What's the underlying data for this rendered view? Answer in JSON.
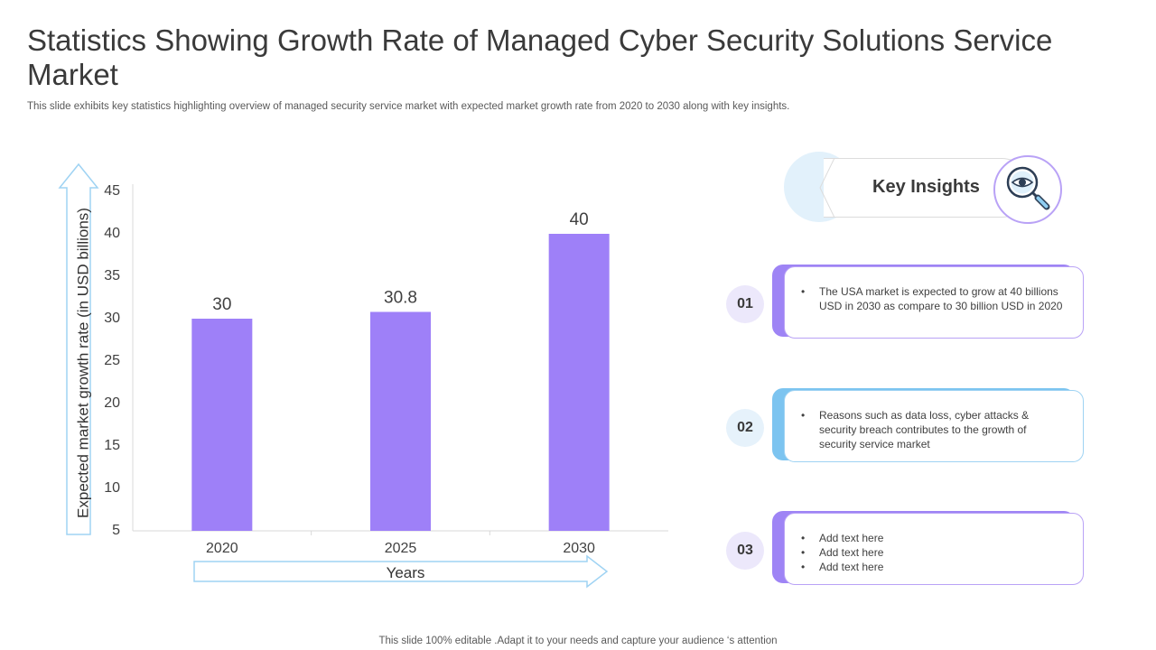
{
  "header": {
    "title": "Statistics Showing Growth Rate of Managed Cyber Security Solutions Service Market",
    "subtitle": "This slide exhibits key statistics highlighting overview of managed security service market with expected market growth rate from 2020 to 2030 along with key insights."
  },
  "footer": {
    "text": "This slide 100% editable .Adapt it to your needs  and capture your audience ‘s attention"
  },
  "colors": {
    "bar": "#9e80f8",
    "arrow_stroke": "#9fd3f3",
    "accent_purple": "#9e84f5",
    "accent_blue": "#7cc4f0"
  },
  "chart_data": {
    "type": "bar",
    "categories": [
      "2020",
      "2025",
      "2030"
    ],
    "values": [
      30,
      30.8,
      40
    ],
    "data_labels": [
      "30",
      "30.8",
      "40"
    ],
    "xlabel": "Years",
    "ylabel": "Expected market growth rate (in USD billions)",
    "ylim": [
      5,
      45
    ],
    "yticks": [
      5,
      10,
      15,
      20,
      25,
      30,
      35,
      40,
      45
    ],
    "grid": false,
    "legend": "none"
  },
  "insights": {
    "title": "Key Insights",
    "icon": "magnifier-eye-icon",
    "items": [
      {
        "number": "01",
        "bullets": [
          "The USA market is expected to grow  at 40 billions USD in 2030 as compare to 30 billion USD in 2020"
        ]
      },
      {
        "number": "02",
        "bullets": [
          "Reasons  such as data loss, cyber attacks & security breach  contributes to the growth of security service  market"
        ]
      },
      {
        "number": "03",
        "bullets": [
          "Add text here",
          "Add text here",
          "Add text here"
        ]
      }
    ]
  }
}
